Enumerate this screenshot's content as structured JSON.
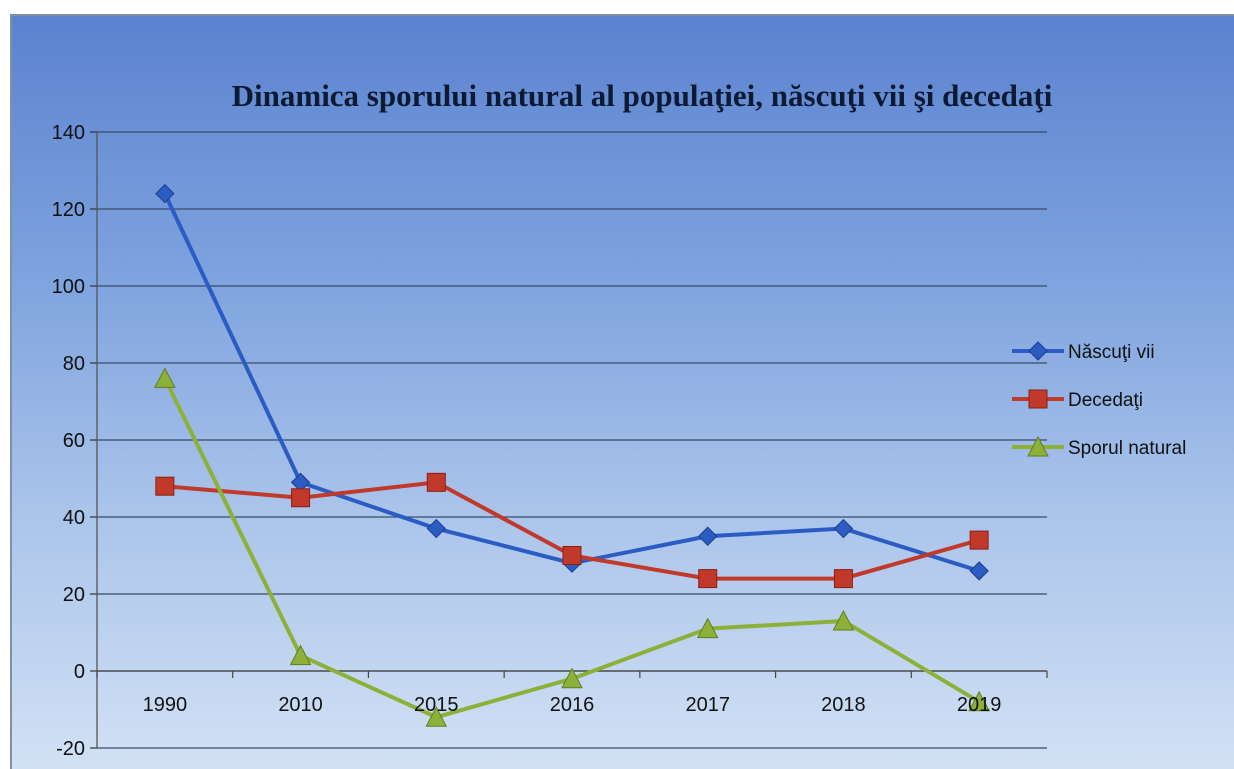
{
  "chart_data": {
    "type": "line",
    "title": "Dinamica sporului natural al populaţiei, născuţi vii şi decedaţi",
    "xlabel": "",
    "ylabel": "",
    "categories": [
      "1990",
      "2010",
      "2015",
      "2016",
      "2017",
      "2018",
      "2019"
    ],
    "ylim": [
      -20,
      140
    ],
    "yticks": [
      -20,
      0,
      20,
      40,
      60,
      80,
      100,
      120,
      140
    ],
    "grid": true,
    "legend_position": "right",
    "series": [
      {
        "name": "Născuţi vii",
        "color": "#2a5cc4",
        "marker": "diamond",
        "values": [
          124,
          49,
          37,
          28,
          35,
          37,
          26
        ]
      },
      {
        "name": "Decedaţi",
        "color": "#c0392b",
        "marker": "square",
        "values": [
          48,
          45,
          49,
          30,
          24,
          24,
          34
        ]
      },
      {
        "name": "Sporul natural",
        "color": "#8db038",
        "marker": "triangle",
        "values": [
          76,
          4,
          -12,
          -2,
          11,
          13,
          -8
        ]
      }
    ]
  }
}
